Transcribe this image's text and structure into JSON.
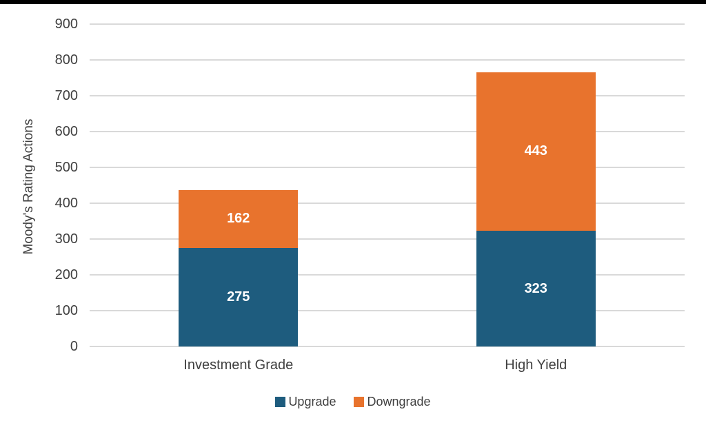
{
  "top_bar": {
    "color": "#000000"
  },
  "chart_data": {
    "type": "bar",
    "stacked": true,
    "orientation": "vertical",
    "categories": [
      "Investment Grade",
      "High Yield"
    ],
    "series": [
      {
        "name": "Upgrade",
        "color": "#1E5C7E",
        "values": [
          275,
          323
        ]
      },
      {
        "name": "Downgrade",
        "color": "#E8732D",
        "values": [
          162,
          443
        ]
      }
    ],
    "totals": [
      437,
      766
    ],
    "title": "",
    "xlabel": "",
    "ylabel": "Moody's Rating Actions",
    "ylim": [
      0,
      900
    ],
    "yticks": [
      0,
      100,
      200,
      300,
      400,
      500,
      600,
      700,
      800,
      900
    ],
    "grid": "horizontal",
    "gridline_color": "#D9D9D9",
    "text_color": "#404040",
    "data_labels": true,
    "data_label_color": "#FFFFFF",
    "legend_position": "bottom"
  }
}
